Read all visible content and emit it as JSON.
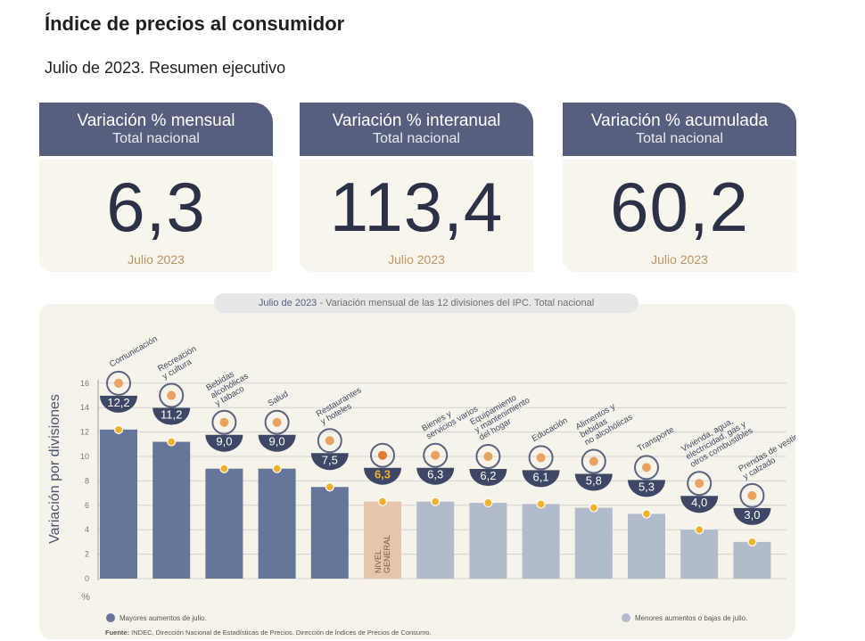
{
  "header": {
    "title": "Índice de precios al consumidor",
    "subtitle": "Julio de 2023. Resumen ejecutivo"
  },
  "cards": [
    {
      "title": "Variación % mensual",
      "subtitle": "Total nacional",
      "value": "6,3",
      "period": "Julio 2023"
    },
    {
      "title": "Variación % interanual",
      "subtitle": "Total nacional",
      "value": "113,4",
      "period": "Julio 2023"
    },
    {
      "title": "Variación % acumulada",
      "subtitle": "Total nacional",
      "value": "60,2",
      "period": "Julio 2023"
    }
  ],
  "chart_caption": {
    "prefix": "Julio de 2023",
    "text": " - Variación mensual de las 12 divisiones del IPC. Total nacional"
  },
  "colors": {
    "header_bg": "#56607e",
    "card_bg": "#f8f5ec",
    "bar_above": "#66769a",
    "bar_below": "#b2bbcb",
    "bar_general": "#e6c5ad",
    "marker": "#f0b12c",
    "panel_bg": "#f6f3ea"
  },
  "chart_data": {
    "type": "bar",
    "ylabel": "Variación por divisiones",
    "yunit": "%",
    "ylim": [
      0,
      16
    ],
    "yticks": [
      0,
      2,
      4,
      6,
      8,
      10,
      12,
      14,
      16
    ],
    "grid": true,
    "categories": [
      "Comunicación",
      "Recreación y cultura",
      "Bebidas alcohólicas y tabaco",
      "Salud",
      "Restaurantes y hoteles",
      "NIVEL GENERAL",
      "Bienes y servicios varios",
      "Equipamiento y mantenimiento del hogar",
      "Educación",
      "Alimentos y bebidas no alcohólicas",
      "Transporte",
      "Vivienda, agua, electricidad, gas y otros combustibles",
      "Prendas de vestir y calzado"
    ],
    "values": [
      12.2,
      11.2,
      9.0,
      9.0,
      7.5,
      6.3,
      6.3,
      6.2,
      6.1,
      5.8,
      5.3,
      4.0,
      3.0
    ],
    "labels": [
      "12,2",
      "11,2",
      "9,0",
      "9,0",
      "7,5",
      "6,3",
      "6,3",
      "6,2",
      "6,1",
      "5,8",
      "5,3",
      "4,0",
      "3,0"
    ],
    "rotated_labels": [
      [
        "Comunicación"
      ],
      [
        "Recreación",
        "y cultura"
      ],
      [
        "Bebidas",
        "alcohólicas",
        "y tabaco"
      ],
      [
        "Salud"
      ],
      [
        "Restaurantes",
        "y hoteles"
      ],
      [],
      [
        "Bienes y",
        "servicios varios"
      ],
      [
        "Equipamiento",
        "y mantenimiento",
        "del hogar"
      ],
      [
        "Educación"
      ],
      [
        "Alimentos y",
        "bebidas",
        "no alcohólicas"
      ],
      [
        "Transporte"
      ],
      [
        "Vivienda, agua,",
        "electricidad, gas y",
        "otros combustibles"
      ],
      [
        "Prendas de vestir",
        "y calzado"
      ]
    ],
    "general_label": [
      "NIVEL",
      "GENERAL"
    ],
    "legend": {
      "above": "Mayores aumentos de julio.",
      "below": "Menores aumentos o bajas de julio."
    },
    "source_label": "Fuente:",
    "source_text": " INDEC, Dirección Nacional de Estadísticas de Precios. Dirección de Índices de Precios de Consumo."
  }
}
